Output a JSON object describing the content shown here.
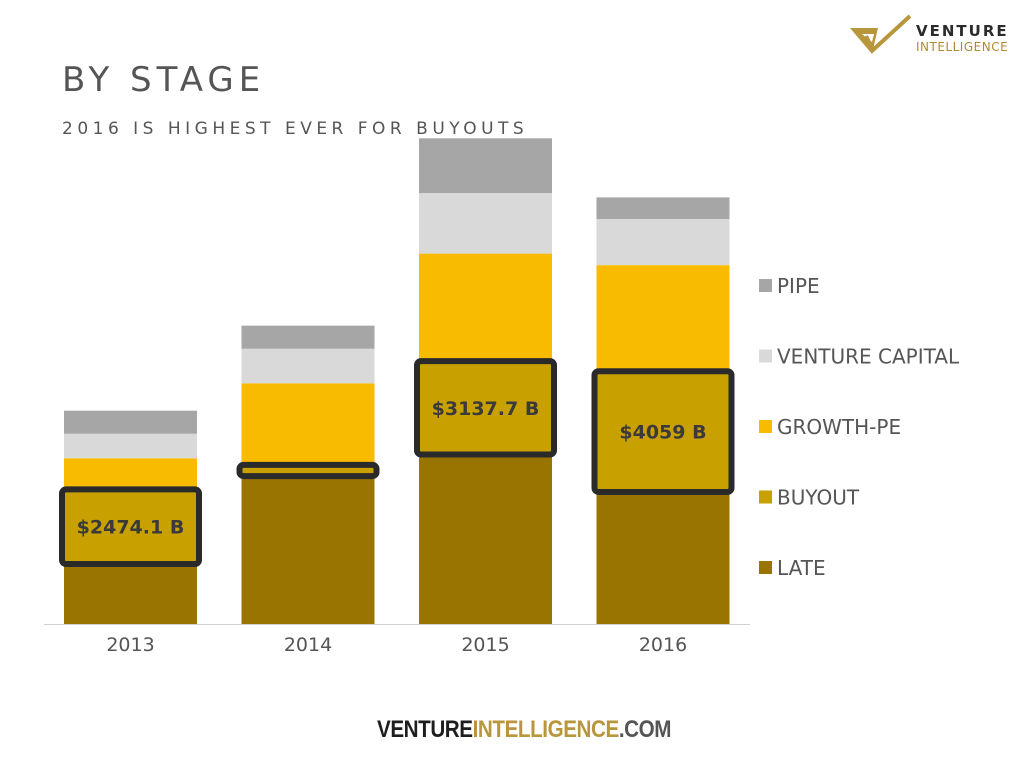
{
  "header": {
    "title": "BY STAGE",
    "subtitle": "2016 IS HIGHEST EVER FOR BUYOUTS"
  },
  "logo": {
    "line1": "VENTURE",
    "line2": "INTELLIGENCE"
  },
  "footer": {
    "part1": "VENTURE",
    "part2": "INTELLIGENCE",
    "part3": ".COM"
  },
  "chart_data": {
    "type": "bar",
    "stacked": true,
    "categories": [
      "2013",
      "2014",
      "2015",
      "2016"
    ],
    "series": [
      {
        "name": "LATE",
        "color": "#9a7400",
        "values": [
          4.3,
          10.4,
          11.9,
          9.3
        ]
      },
      {
        "name": "BUYOUT",
        "color": "#c8a000",
        "values": [
          4.9,
          0.5,
          6.2,
          8.1
        ]
      },
      {
        "name": "GROWTH-PE",
        "color": "#f9bb00",
        "values": [
          2.3,
          5.8,
          7.6,
          7.5
        ]
      },
      {
        "name": "VENTURE CAPITAL",
        "color": "#d9d9d9",
        "values": [
          1.7,
          2.4,
          4.2,
          3.2
        ]
      },
      {
        "name": "PIPE",
        "color": "#a6a6a6",
        "values": [
          1.6,
          1.6,
          3.8,
          1.5
        ]
      }
    ],
    "highlighted_series": "BUYOUT",
    "annotations": [
      "$2474.1 B",
      "",
      "$3137.7 B",
      "$4059 B"
    ],
    "ylim": [
      0,
      35
    ],
    "yaxis_visible": false,
    "grid": false,
    "legend_position": "right"
  }
}
